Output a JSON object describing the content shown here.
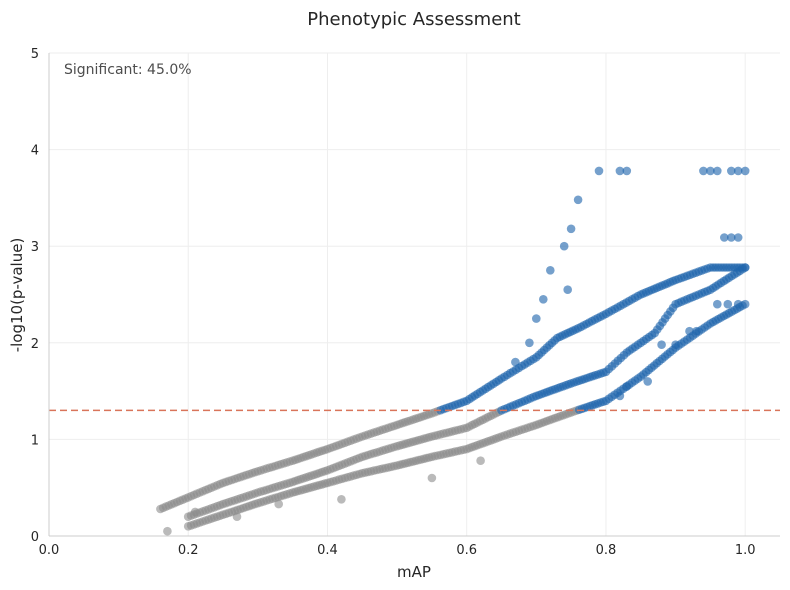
{
  "chart_data": {
    "type": "scatter",
    "title": "Phenotypic Assessment",
    "xlabel": "mAP",
    "ylabel": "-log10(p-value)",
    "xlim": [
      0.0,
      1.05
    ],
    "ylim": [
      0,
      5
    ],
    "xticks": [
      "0.0",
      "0.2",
      "0.4",
      "0.6",
      "0.8",
      "1.0"
    ],
    "yticks": [
      "0",
      "1",
      "2",
      "3",
      "4",
      "5"
    ],
    "grid": true,
    "annotation": "Significant: 45.0%",
    "threshold_y": 1.3,
    "colors": {
      "significant": "#2166ac",
      "not_significant": "#8c8c8c",
      "threshold": "#d9745a"
    },
    "bands": [
      {
        "points": [
          [
            0.16,
            0.28
          ],
          [
            0.18,
            0.34
          ],
          [
            0.2,
            0.4
          ],
          [
            0.25,
            0.55
          ],
          [
            0.3,
            0.67
          ],
          [
            0.35,
            0.78
          ],
          [
            0.4,
            0.9
          ],
          [
            0.45,
            1.03
          ],
          [
            0.5,
            1.15
          ],
          [
            0.55,
            1.27
          ],
          [
            0.6,
            1.4
          ],
          [
            0.65,
            1.63
          ],
          [
            0.7,
            1.85
          ],
          [
            0.73,
            2.05
          ],
          [
            0.76,
            2.15
          ],
          [
            0.8,
            2.3
          ],
          [
            0.85,
            2.5
          ],
          [
            0.9,
            2.65
          ],
          [
            0.95,
            2.78
          ],
          [
            1.0,
            2.78
          ]
        ]
      },
      {
        "points": [
          [
            0.2,
            0.2
          ],
          [
            0.25,
            0.33
          ],
          [
            0.3,
            0.45
          ],
          [
            0.35,
            0.56
          ],
          [
            0.4,
            0.68
          ],
          [
            0.45,
            0.82
          ],
          [
            0.5,
            0.93
          ],
          [
            0.55,
            1.03
          ],
          [
            0.6,
            1.12
          ],
          [
            0.65,
            1.3
          ],
          [
            0.7,
            1.45
          ],
          [
            0.75,
            1.58
          ],
          [
            0.8,
            1.7
          ],
          [
            0.83,
            1.9
          ],
          [
            0.87,
            2.1
          ],
          [
            0.9,
            2.4
          ],
          [
            0.95,
            2.55
          ],
          [
            1.0,
            2.78
          ]
        ]
      },
      {
        "points": [
          [
            0.2,
            0.1
          ],
          [
            0.25,
            0.22
          ],
          [
            0.3,
            0.34
          ],
          [
            0.35,
            0.45
          ],
          [
            0.4,
            0.55
          ],
          [
            0.45,
            0.65
          ],
          [
            0.5,
            0.73
          ],
          [
            0.55,
            0.82
          ],
          [
            0.6,
            0.9
          ],
          [
            0.65,
            1.03
          ],
          [
            0.7,
            1.15
          ],
          [
            0.75,
            1.28
          ],
          [
            0.8,
            1.4
          ],
          [
            0.85,
            1.65
          ],
          [
            0.9,
            1.95
          ],
          [
            0.95,
            2.2
          ],
          [
            1.0,
            2.4
          ]
        ]
      }
    ],
    "extra_points": [
      [
        0.17,
        0.05
      ],
      [
        0.21,
        0.25
      ],
      [
        0.27,
        0.2
      ],
      [
        0.33,
        0.33
      ],
      [
        0.42,
        0.38
      ],
      [
        0.55,
        0.6
      ],
      [
        0.62,
        0.78
      ],
      [
        0.67,
        1.8
      ],
      [
        0.69,
        2.0
      ],
      [
        0.7,
        2.25
      ],
      [
        0.71,
        2.45
      ],
      [
        0.72,
        2.75
      ],
      [
        0.74,
        3.0
      ],
      [
        0.75,
        3.18
      ],
      [
        0.76,
        3.48
      ],
      [
        0.745,
        2.55
      ],
      [
        0.79,
        3.78
      ],
      [
        0.82,
        3.78
      ],
      [
        0.83,
        3.78
      ],
      [
        0.94,
        3.78
      ],
      [
        0.95,
        3.78
      ],
      [
        0.96,
        3.78
      ],
      [
        0.98,
        3.78
      ],
      [
        0.99,
        3.78
      ],
      [
        1.0,
        3.78
      ],
      [
        0.92,
        2.12
      ],
      [
        0.93,
        2.12
      ],
      [
        0.97,
        3.09
      ],
      [
        0.98,
        3.09
      ],
      [
        0.99,
        3.09
      ],
      [
        0.975,
        2.4
      ],
      [
        0.99,
        2.4
      ],
      [
        0.96,
        2.4
      ],
      [
        0.9,
        1.98
      ],
      [
        0.88,
        1.98
      ],
      [
        0.86,
        1.6
      ],
      [
        0.83,
        1.55
      ],
      [
        0.82,
        1.45
      ]
    ]
  }
}
